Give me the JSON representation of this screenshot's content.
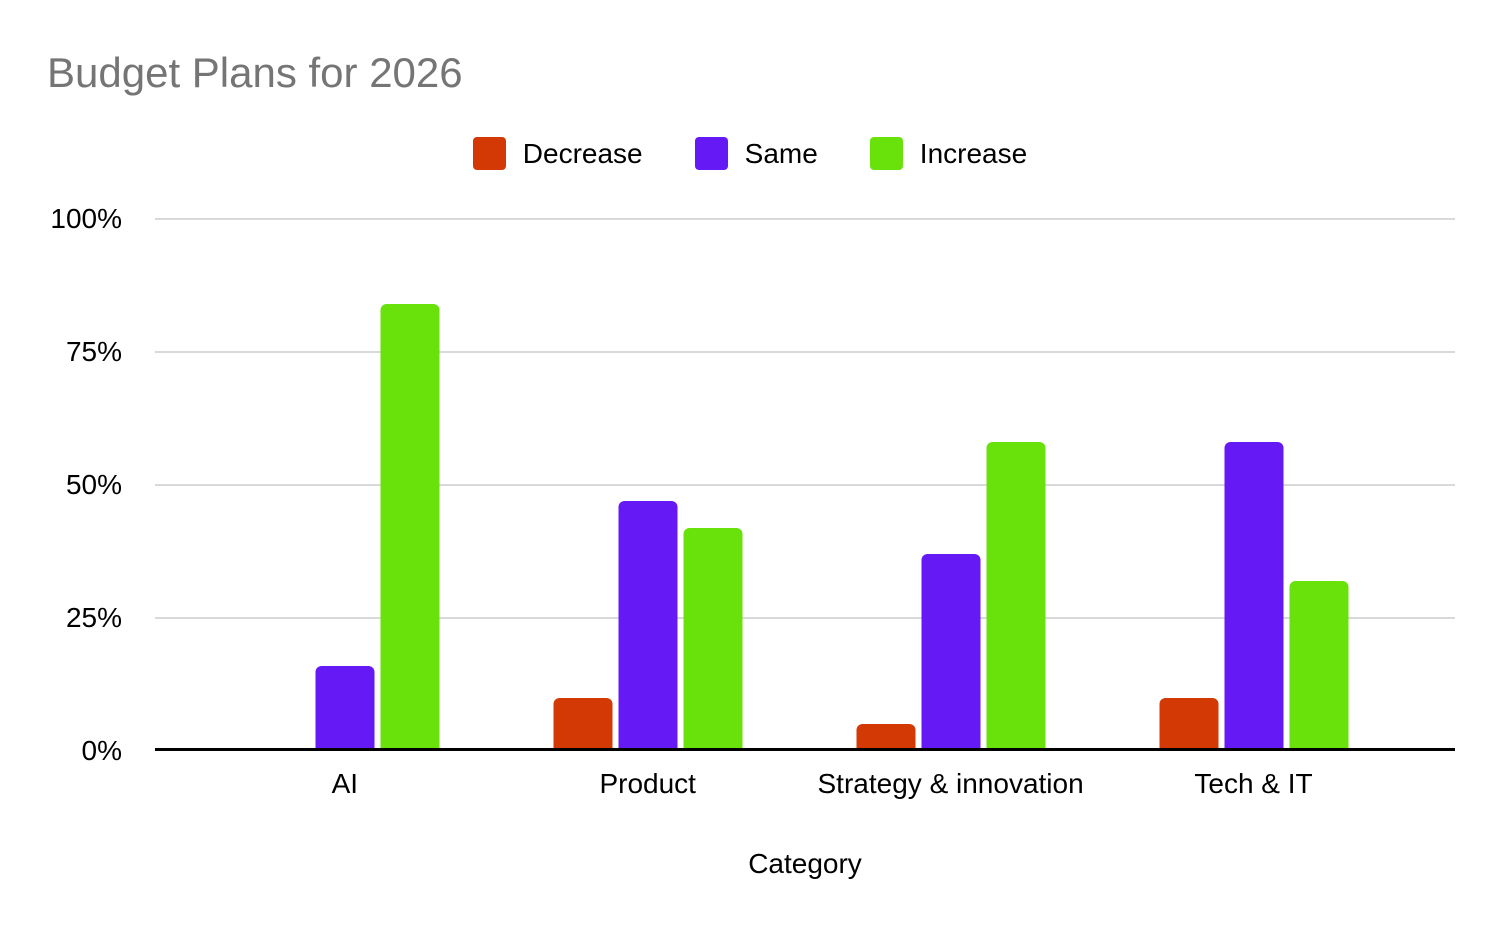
{
  "chart_data": {
    "type": "bar",
    "title": "Budget Plans for 2026",
    "xlabel": "Category",
    "ylabel": "",
    "categories": [
      "AI",
      "Product",
      "Strategy & innovation",
      "Tech & IT"
    ],
    "series": [
      {
        "name": "Decrease",
        "color": "#d23905",
        "values": [
          0.4,
          10,
          5,
          10
        ]
      },
      {
        "name": "Same",
        "color": "#6419f5",
        "values": [
          16,
          47,
          37,
          58
        ]
      },
      {
        "name": "Increase",
        "color": "#69e10a",
        "values": [
          84,
          42,
          58,
          32
        ]
      }
    ],
    "ylim": [
      0,
      100
    ],
    "yticks": [
      "0%",
      "25%",
      "50%",
      "75%",
      "100%"
    ],
    "grid": true,
    "legend_position": "top",
    "colors": {
      "title_text": "#757575",
      "axis_text": "#000000",
      "gridline": "#d9d9d9",
      "axis_line": "#000000",
      "background": "#ffffff"
    }
  }
}
